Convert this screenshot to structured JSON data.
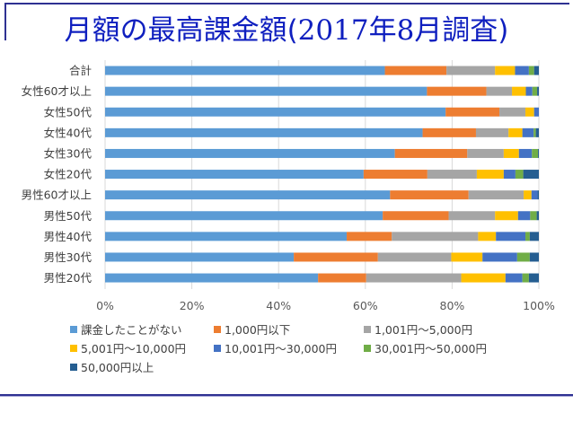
{
  "page": {
    "title_prefix": "月額の最高課金額(",
    "title_year": "2017",
    "title_mid": "年",
    "title_month": "8",
    "title_suffix": "月調査)"
  },
  "chart_data": {
    "type": "bar",
    "orientation": "horizontal",
    "stacked": "percent",
    "title": "月額の最高課金額(2017年8月調査)",
    "xlabel": "",
    "ylabel": "",
    "xlim": [
      0,
      100
    ],
    "x_ticks": [
      "0%",
      "20%",
      "40%",
      "60%",
      "80%",
      "100%"
    ],
    "grid": "vertical",
    "legend_position": "bottom",
    "categories": [
      "合計",
      "女性60才以上",
      "女性50代",
      "女性40代",
      "女性30代",
      "女性20代",
      "男性60才以上",
      "男性50代",
      "男性40代",
      "男性30代",
      "男性20代"
    ],
    "series": [
      {
        "name": "課金したことがない",
        "color": "#5b9bd5",
        "values": [
          64.5,
          74.2,
          78.5,
          73.2,
          66.8,
          59.6,
          65.7,
          64.0,
          55.7,
          43.5,
          49.1
        ]
      },
      {
        "name": "1,000円以下",
        "color": "#ed7d31",
        "values": [
          14.2,
          13.7,
          12.4,
          12.3,
          16.7,
          14.7,
          18.1,
          15.2,
          10.4,
          19.4,
          11.1
        ]
      },
      {
        "name": "1,001円～5,000円",
        "color": "#a5a5a5",
        "values": [
          11.2,
          5.9,
          6.0,
          7.5,
          8.4,
          11.4,
          12.7,
          10.7,
          19.9,
          16.9,
          21.9
        ]
      },
      {
        "name": "5,001円～10,000円",
        "color": "#ffc000",
        "values": [
          4.6,
          3.2,
          2.0,
          3.2,
          3.5,
          6.2,
          1.8,
          5.3,
          4.1,
          7.2,
          10.2
        ]
      },
      {
        "name": "10,001円～30,000円",
        "color": "#4472c4",
        "values": [
          3.2,
          1.5,
          1.1,
          2.6,
          3.0,
          2.7,
          1.4,
          2.8,
          6.8,
          8.0,
          3.9
        ]
      },
      {
        "name": "30,001円～50,000円",
        "color": "#70ad47",
        "values": [
          1.2,
          1.1,
          0.0,
          0.5,
          1.4,
          1.8,
          0.0,
          1.5,
          1.0,
          2.9,
          1.5
        ]
      },
      {
        "name": "50,000円以上",
        "color": "#255e91",
        "values": [
          1.1,
          0.4,
          0.0,
          0.7,
          0.2,
          3.6,
          0.3,
          0.5,
          2.1,
          2.1,
          2.3
        ]
      }
    ]
  },
  "colors": {
    "title": "#0f1fbf",
    "rule": "#2e3192",
    "grid": "#d9d9d9",
    "label": "#404040"
  }
}
